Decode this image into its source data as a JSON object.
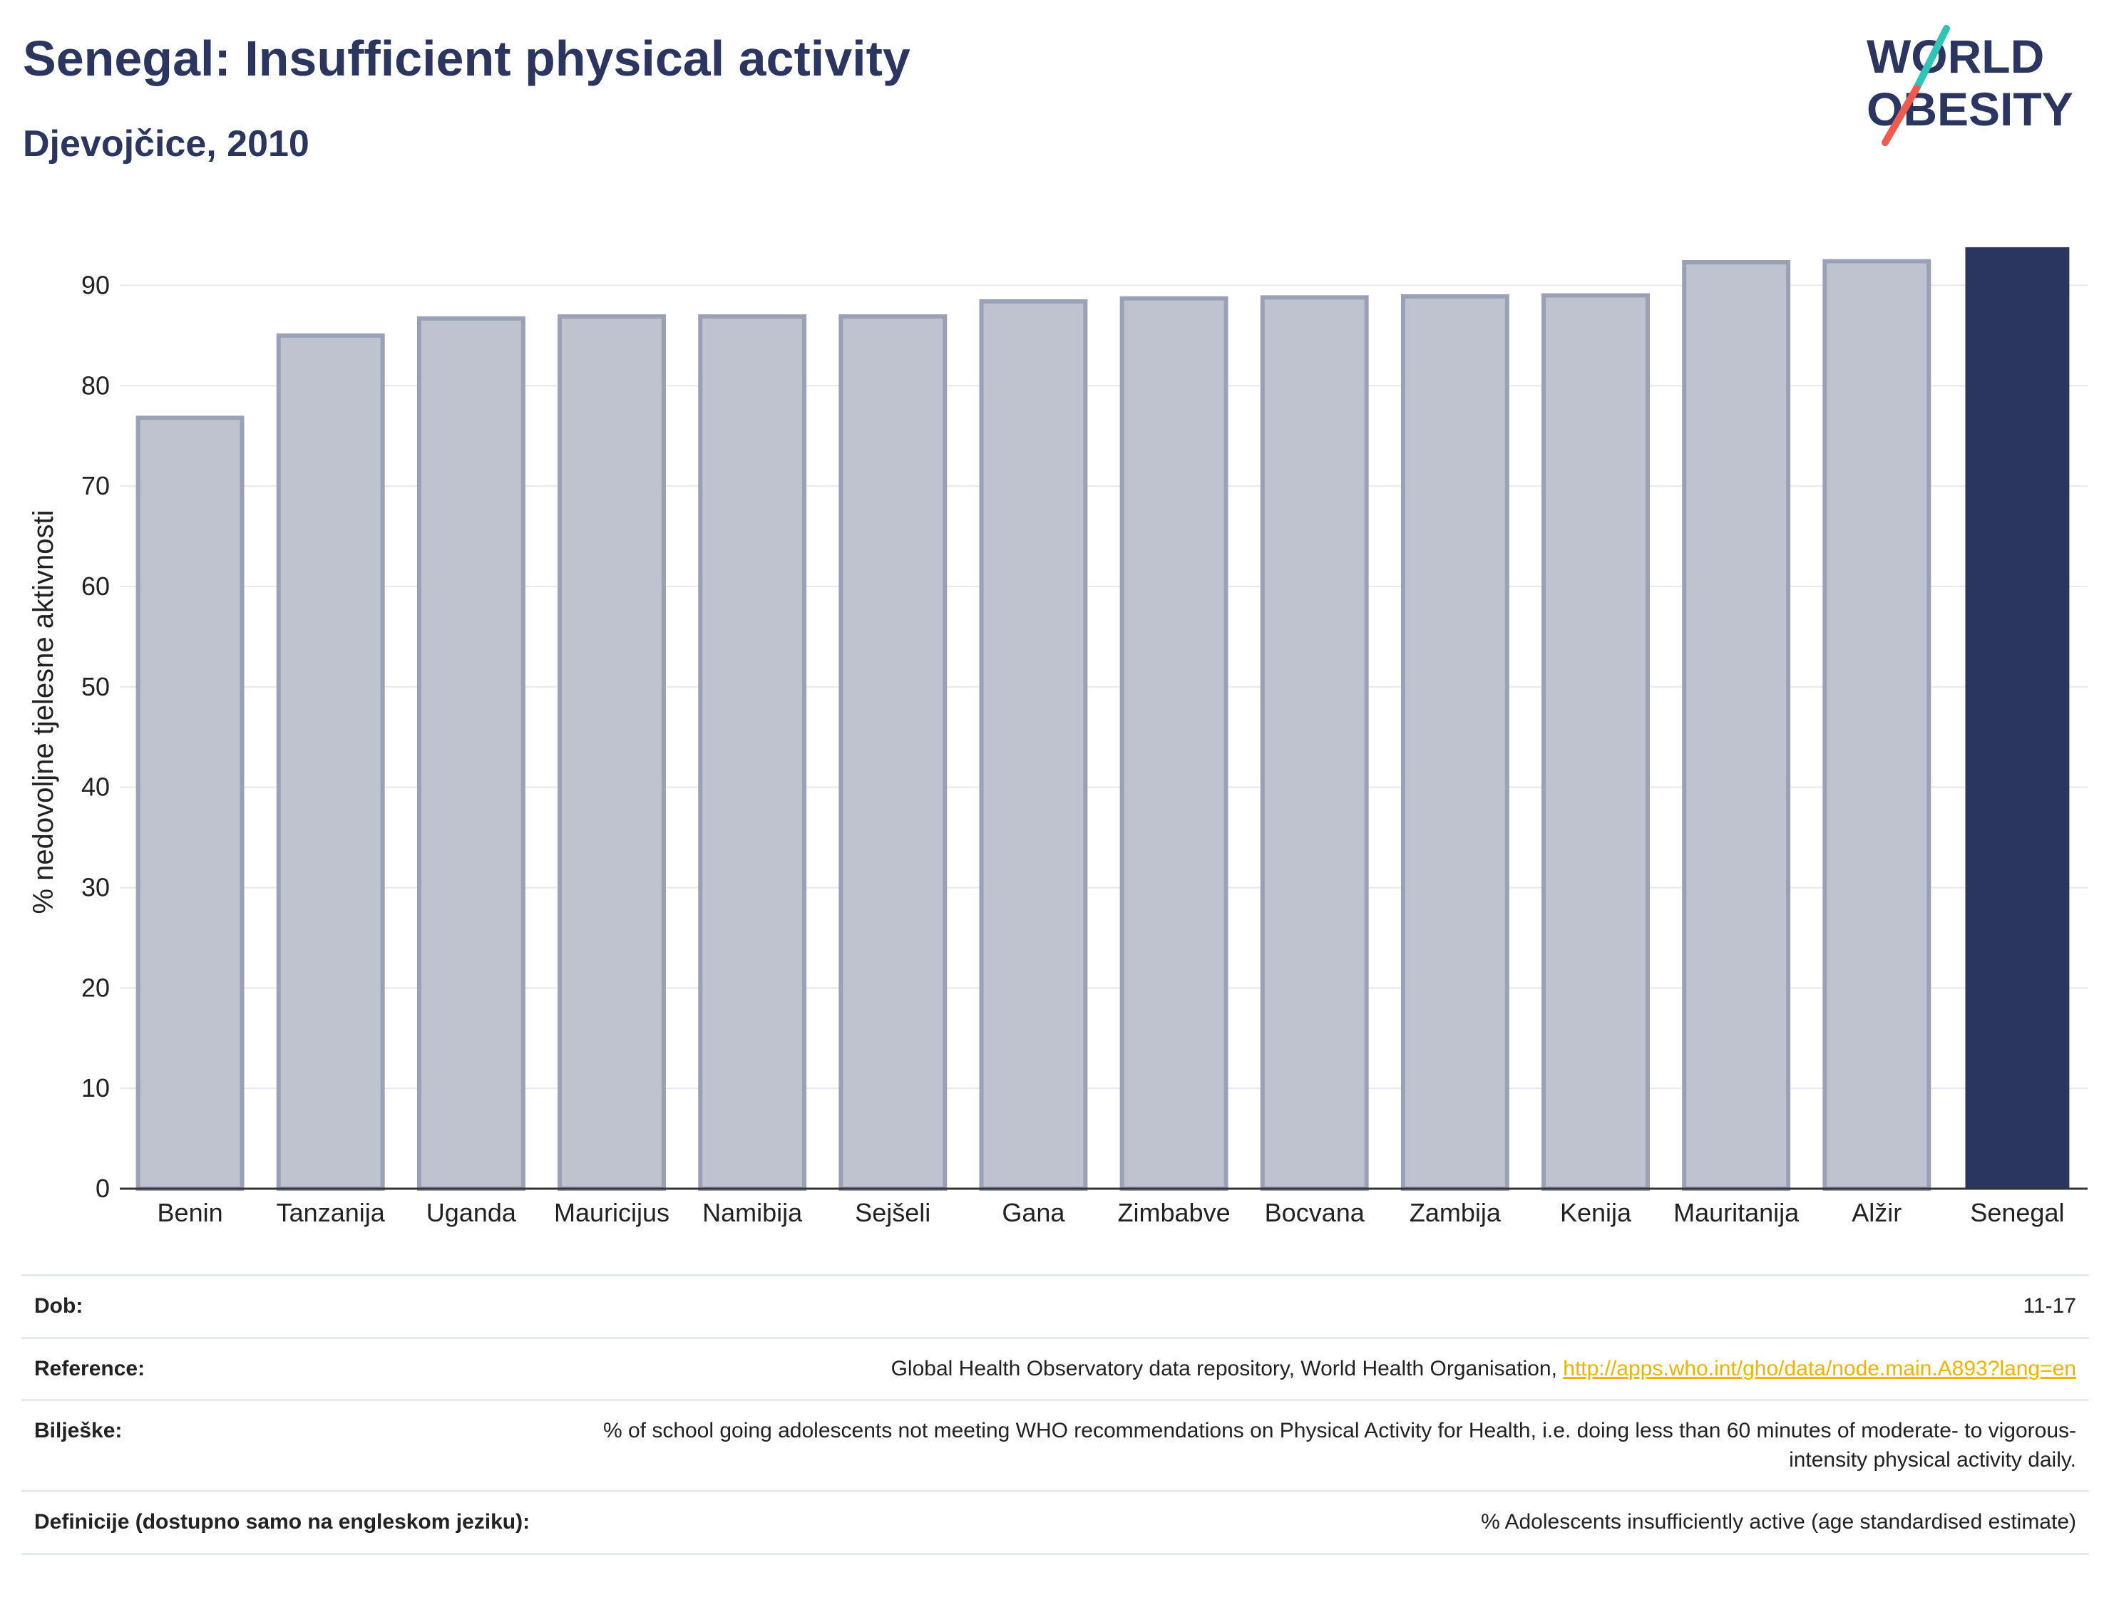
{
  "header": {
    "title": "Senegal: Insufficient physical activity",
    "subtitle": "Djevojčice, 2010"
  },
  "logo": {
    "line1": "WORLD",
    "line2": "OBESITY",
    "accent_teal": "#2ec4b6",
    "accent_red": "#f05a4f",
    "text_color": "#2a3560"
  },
  "colors": {
    "bar_default_fill": "#bfc2cf",
    "bar_default_stroke": "#9aa0b6",
    "bar_highlight": "#2a3560",
    "grid": "#e6e8ee"
  },
  "chart_data": {
    "type": "bar",
    "title": "Senegal: Insufficient physical activity",
    "subtitle": "Djevojčice, 2010",
    "xlabel": "",
    "ylabel": "% nedovoljne tjelesne aktivnosti",
    "ylim": [
      0,
      95
    ],
    "yticks": [
      0,
      10,
      20,
      30,
      40,
      50,
      60,
      70,
      80,
      90
    ],
    "grid": true,
    "categories": [
      "Benin",
      "Tanzanija",
      "Uganda",
      "Mauricijus",
      "Namibija",
      "Sejšeli",
      "Gana",
      "Zimbabve",
      "Bocvana",
      "Zambija",
      "Kenija",
      "Mauritanija",
      "Alžir",
      "Senegal"
    ],
    "values": [
      76.8,
      85.0,
      86.7,
      86.9,
      86.9,
      86.9,
      88.4,
      88.7,
      88.8,
      88.9,
      89.0,
      92.3,
      92.4,
      93.8
    ],
    "highlight": "Senegal"
  },
  "meta": {
    "rows": [
      {
        "key": "Dob:",
        "value": "11-17"
      },
      {
        "key": "Reference:",
        "value": "Global Health Observatory data repository, World Health Organisation, ",
        "link": "http://apps.who.int/gho/data/node.main.A893?lang=en"
      },
      {
        "key": "Bilješke:",
        "value": "% of school going adolescents not meeting WHO recommendations on Physical Activity for Health, i.e. doing less than 60 minutes of moderate- to vigorous-intensity physical activity daily."
      },
      {
        "key": "Definicije (dostupno samo na engleskom jeziku):",
        "value": "% Adolescents insufficiently active (age standardised estimate)"
      }
    ]
  }
}
